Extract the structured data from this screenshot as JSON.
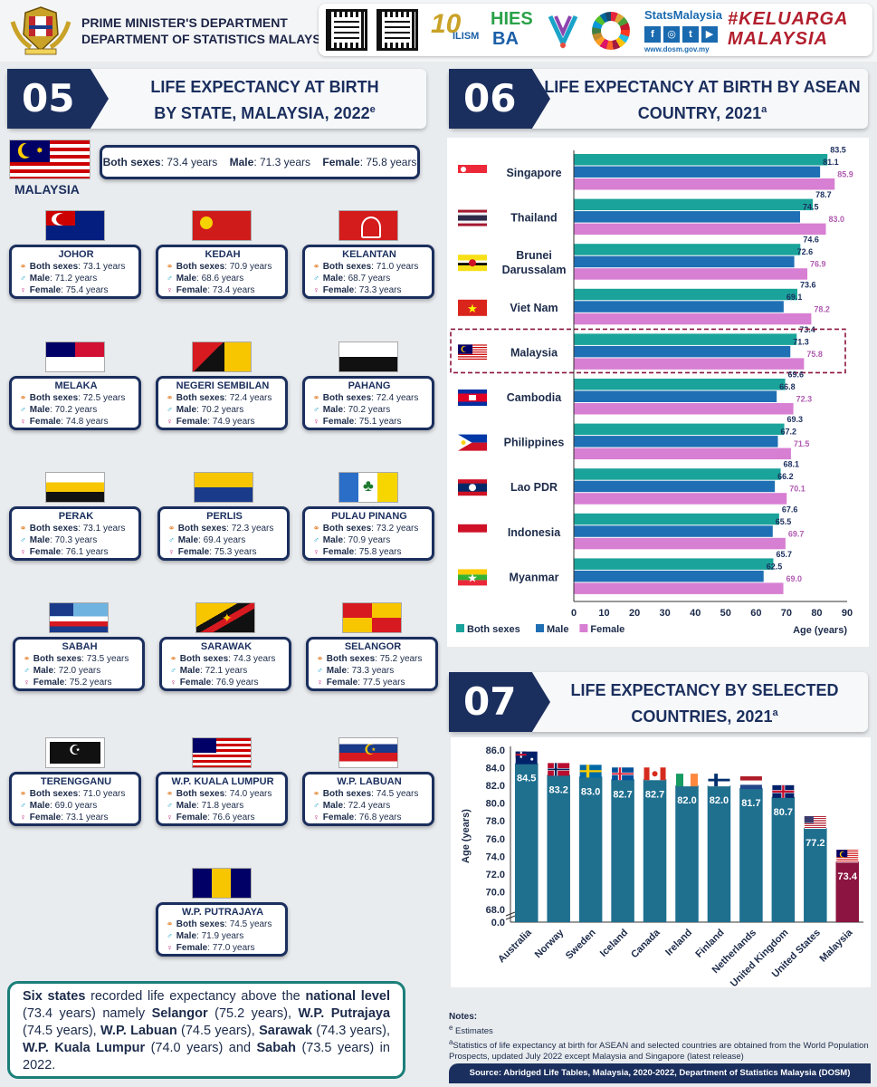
{
  "header": {
    "dept_line1": "PRIME MINISTER'S DEPARTMENT",
    "dept_line2": "DEPARTMENT OF STATISTICS MALAYSIA",
    "logo_10": "10",
    "logo_ilism": "ILISM",
    "logo_hies": "HIES",
    "logo_ba": "BA",
    "statsmalaysia": "StatsMalaysia",
    "site": "www.dosm.gov.my",
    "keluarga": "#KELUARGA MALAYSIA",
    "social_icons": [
      "f",
      "◎",
      "t",
      "▶"
    ]
  },
  "sec05": {
    "num": "05",
    "title_line1": "LIFE EXPECTANCY AT BIRTH",
    "title_line2": "BY STATE, MALAYSIA, 2022",
    "title_sup": "e"
  },
  "sec06": {
    "num": "06",
    "title_line1": "LIFE EXPECTANCY AT BIRTH BY ASEAN",
    "title_line2": "COUNTRY, 2021",
    "title_sup": "a"
  },
  "sec07": {
    "num": "07",
    "title_line1": "LIFE EXPECTANCY BY SELECTED",
    "title_line2": "COUNTRIES, 2021",
    "title_sup": "a"
  },
  "malaysia": {
    "label": "MALAYSIA",
    "both_label": "Both sexes",
    "both_value": ": 73.4 years",
    "male_label": "Male",
    "male_value": ": 71.3 years",
    "female_label": "Female",
    "female_value": ": 75.8 years"
  },
  "state_labels": {
    "both": "Both sexes",
    "male": "Male",
    "female": "Female"
  },
  "states": [
    {
      "name": "JOHOR",
      "both": ": 73.1 years",
      "male": ": 71.2 years",
      "female": ": 75.4 years"
    },
    {
      "name": "KEDAH",
      "both": ": 70.9 years",
      "male": ": 68.6 years",
      "female": ": 73.4 years"
    },
    {
      "name": "KELANTAN",
      "both": ": 71.0 years",
      "male": ": 68.7 years",
      "female": ": 73.3 years"
    },
    {
      "name": "MELAKA",
      "both": ": 72.5 years",
      "male": ": 70.2 years",
      "female": ": 74.8 years"
    },
    {
      "name": "NEGERI SEMBILAN",
      "both": ": 72.4 years",
      "male": ": 70.2 years",
      "female": ": 74.9 years"
    },
    {
      "name": "PAHANG",
      "both": ": 72.4 years",
      "male": ": 70.2 years",
      "female": ": 75.1 years"
    },
    {
      "name": "PERAK",
      "both": ": 73.1 years",
      "male": ": 70.3 years",
      "female": ": 76.1 years"
    },
    {
      "name": "PERLIS",
      "both": ": 72.3 years",
      "male": ": 69.4 years",
      "female": ": 75.3 years"
    },
    {
      "name": "PULAU PINANG",
      "both": ": 73.2 years",
      "male": ": 70.9 years",
      "female": ": 75.8 years"
    },
    {
      "name": "SABAH",
      "both": ": 73.5 years",
      "male": ": 72.0 years",
      "female": ": 75.2 years"
    },
    {
      "name": "SARAWAK",
      "both": ": 74.3 years",
      "male": ": 72.1 years",
      "female": ": 76.9 years"
    },
    {
      "name": "SELANGOR",
      "both": ": 75.2 years",
      "male": ": 73.3 years",
      "female": ": 77.5 years"
    },
    {
      "name": "TERENGGANU",
      "both": ": 71.0 years",
      "male": ": 69.0 years",
      "female": ": 73.1 years"
    },
    {
      "name": "W.P. KUALA LUMPUR",
      "both": ": 74.0 years",
      "male": ": 71.8 years",
      "female": ": 76.6 years"
    },
    {
      "name": "W.P. LABUAN",
      "both": ": 74.5 years",
      "male": ": 72.4 years",
      "female": ": 76.8 years"
    },
    {
      "name": "W.P. PUTRAJAYA",
      "both": ": 74.5 years",
      "male": ": 71.9 years",
      "female": ": 77.0 years"
    }
  ],
  "summary": {
    "p1": "Six states",
    "p2": " recorded life expectancy above the ",
    "p3": "national level",
    "p4": " (73.4 years) namely ",
    "p5": "Selangor",
    "p6": " (75.2 years), ",
    "p7": "W.P. Putrajaya",
    "p8": " (74.5 years), ",
    "p9": "W.P. Labuan",
    "p10": " (74.5 years), ",
    "p11": "Sarawak",
    "p12": " (74.3 years), ",
    "p13": "W.P. Kuala Lumpur",
    "p14": " (74.0 years) and ",
    "p15": "Sabah",
    "p16": " (73.5 years) in 2022."
  },
  "chart_data": [
    {
      "type": "bar",
      "orientation": "horizontal",
      "title": "LIFE EXPECTANCY AT BIRTH BY ASEAN COUNTRY, 2021",
      "categories": [
        "Singapore",
        "Thailand",
        "Brunei Darussalam",
        "Viet Nam",
        "Malaysia",
        "Cambodia",
        "Philippines",
        "Lao PDR",
        "Indonesia",
        "Myanmar"
      ],
      "series": [
        {
          "name": "Both sexes",
          "color": "#1aa39a",
          "values": [
            83.5,
            78.7,
            74.6,
            73.6,
            73.4,
            69.6,
            69.3,
            68.1,
            67.6,
            65.7
          ]
        },
        {
          "name": "Male",
          "color": "#1f6fb5",
          "values": [
            81.1,
            74.5,
            72.6,
            69.1,
            71.3,
            66.8,
            67.2,
            66.2,
            65.5,
            62.5
          ]
        },
        {
          "name": "Female",
          "color": "#d77fd2",
          "values": [
            85.9,
            83.0,
            76.9,
            78.2,
            75.8,
            72.3,
            71.5,
            70.1,
            69.7,
            69.0
          ]
        }
      ],
      "labels": {
        "Both sexes": [
          "83.5",
          "78.7",
          "74.6",
          "73.6",
          "73.4",
          "69.6",
          "69.3",
          "68.1",
          "67.6",
          "65.7"
        ],
        "Male": [
          "81.1",
          "74.5",
          "72.6",
          "69.1",
          "71.3",
          "66.8",
          "67.2",
          "66.2",
          "65.5",
          "62.5"
        ],
        "Female": [
          "85.9",
          "83.0",
          "76.9",
          "78.2",
          "75.8",
          "72.3",
          "71.5",
          "70.1",
          "69.7",
          "69.0"
        ]
      },
      "xlabel": "Age (years)",
      "xlim": [
        0,
        90
      ],
      "xticks": [
        "0",
        "10",
        "20",
        "30",
        "40",
        "50",
        "60",
        "70",
        "80",
        "90"
      ],
      "highlight": "Malaysia",
      "legend": "bottom-left"
    },
    {
      "type": "bar",
      "orientation": "vertical",
      "title": "LIFE EXPECTANCY BY SELECTED COUNTRIES, 2021",
      "categories": [
        "Australia",
        "Norway",
        "Sweden",
        "Iceland",
        "Canada",
        "Ireland",
        "Finland",
        "Netherlands",
        "United Kingdom",
        "United States",
        "Malaysia"
      ],
      "values": [
        84.5,
        83.2,
        83.0,
        82.7,
        82.7,
        82.0,
        82.0,
        81.7,
        80.7,
        77.2,
        73.4
      ],
      "value_labels": [
        "84.5",
        "83.2",
        "83.0",
        "82.7",
        "82.7",
        "82.0",
        "82.0",
        "81.7",
        "80.7",
        "77.2",
        "73.4"
      ],
      "ylabel": "Age (years)",
      "ylim": [
        68,
        86
      ],
      "yticks": [
        "0.0",
        "68.0",
        "70.0",
        "72.0",
        "74.0",
        "76.0",
        "78.0",
        "80.0",
        "82.0",
        "84.0",
        "86.0"
      ],
      "axis_break": true,
      "colors": {
        "bar": "#1f6f8f",
        "highlight": "#8b1540"
      },
      "highlight": "Malaysia"
    }
  ],
  "notes": {
    "title": "Notes:",
    "e_sup": "e",
    "e_text": " Estimates",
    "a_sup": "a",
    "a_text": "Statistics of life expectancy at birth for ASEAN and selected countries are obtained from the World Population Prospects, updated July 2022 except Malaysia and Singapore (latest release)"
  },
  "source": "Source: Abridged Life Tables, Malaysia, 2020-2022, Department of Statistics Malaysia (DOSM)",
  "colors": {
    "navy": "#1b2f5e",
    "teal": "#1aa39a",
    "blue": "#1f6fb5",
    "pink": "#d77fd2",
    "maroon": "#8b1540"
  }
}
